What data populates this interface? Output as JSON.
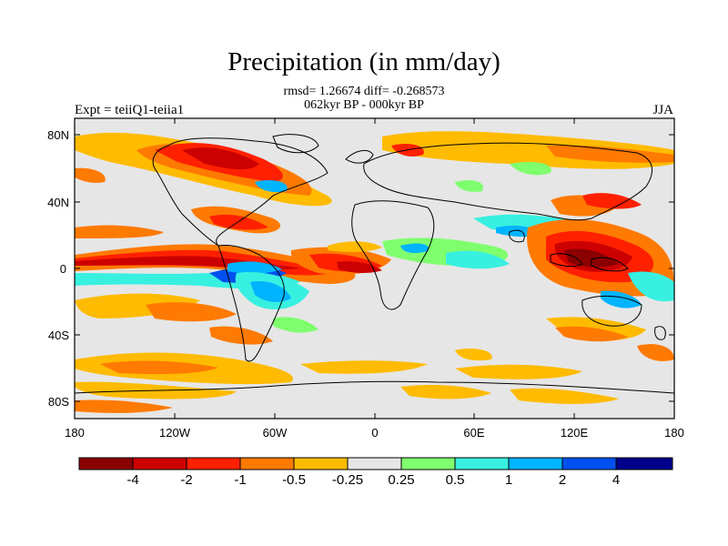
{
  "header": {
    "title": "Precipitation (in mm/day)",
    "stats_line": "rmsd= 1.26674 diff= -0.268573",
    "period_line": "062kyr BP - 000kyr BP",
    "experiment_label": "Expt = teiiQ1-teiia1",
    "season_label": "JJA"
  },
  "map": {
    "lat_ticks": [
      "80N",
      "40N",
      "0",
      "40S",
      "80S"
    ],
    "lon_ticks": [
      "180",
      "120W",
      "60W",
      "0",
      "60E",
      "120E",
      "180"
    ],
    "ocean_neutral_color": "#e6e6e6"
  },
  "colorbar": {
    "colors": [
      "#8b0000",
      "#cc0000",
      "#ff2000",
      "#ff7a00",
      "#ffbb00",
      "#e6e6e6",
      "#7fff6e",
      "#38f0e0",
      "#00b4ff",
      "#0050f0",
      "#00008c"
    ],
    "labels": [
      "-4",
      "-2",
      "-1",
      "-0.5",
      "-0.25",
      "0.25",
      "0.5",
      "1",
      "2",
      "4"
    ]
  }
}
